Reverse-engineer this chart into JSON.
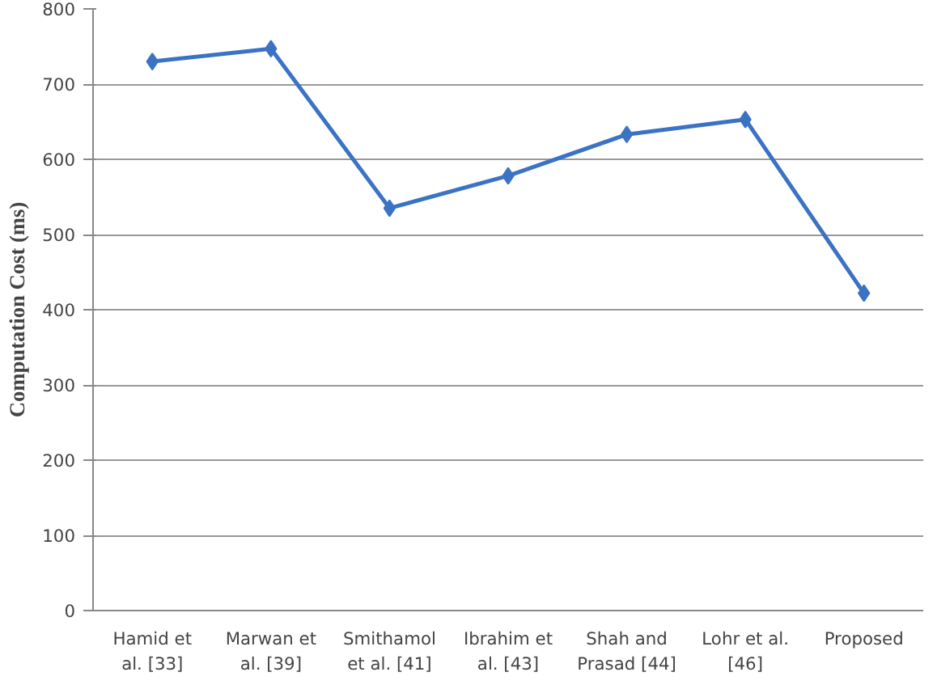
{
  "chart_data": {
    "type": "line",
    "ylabel": "Computation Cost (ms)",
    "categories": [
      "Hamid et al. [33]",
      "Marwan et al. [39]",
      "Smithamol et al. [41]",
      "Ibrahim et al. [43]",
      "Shah and Prasad [44]",
      "Lohr et al. [46]",
      "Proposed"
    ],
    "series": [
      {
        "color": "#3b73c4",
        "values": [
          730,
          747,
          535,
          578,
          633,
          653,
          422
        ]
      }
    ],
    "ylim": [
      0,
      800
    ],
    "yticks": [
      0,
      100,
      200,
      300,
      400,
      500,
      600,
      700,
      800
    ],
    "grid": "y",
    "marker": "diamond",
    "line_style": "solid"
  }
}
